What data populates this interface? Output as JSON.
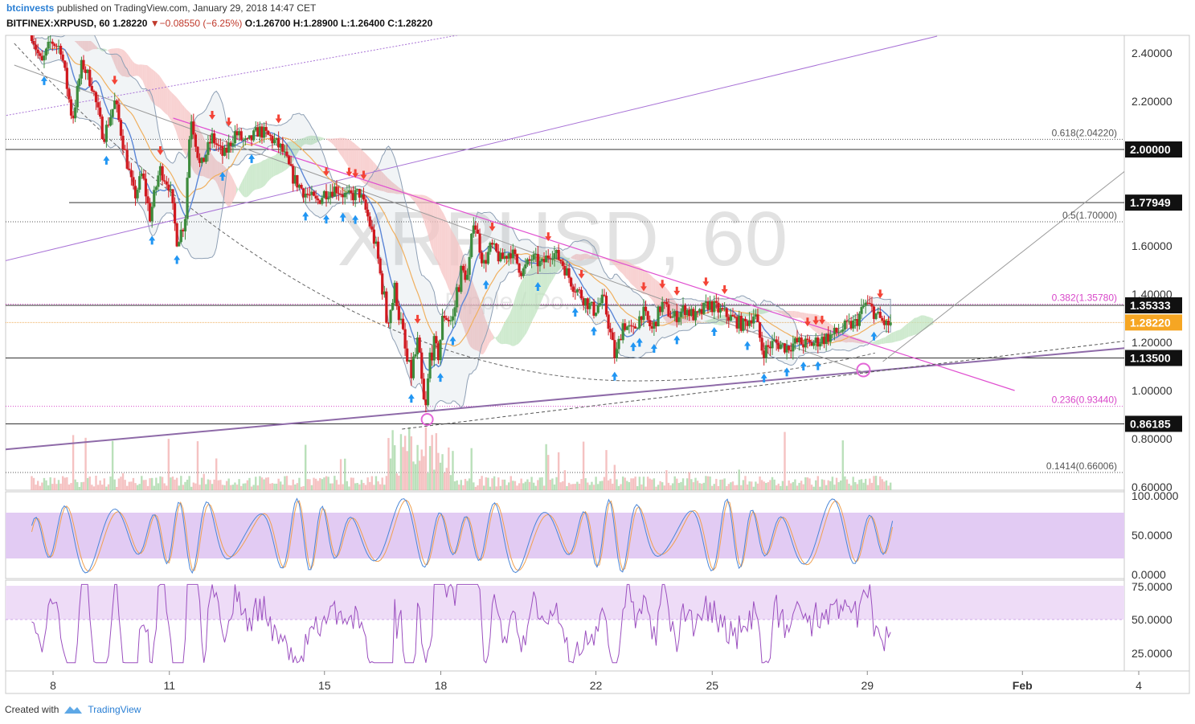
{
  "header": {
    "user": "btcinvests",
    "published": " published on TradingView.com, January 29, 2018 14:47 CET",
    "symbol": "BITFINEX:XRPUSD, 60",
    "last": "1.28220",
    "change": "−0.08550 (−6.25%)",
    "ohlc": "O:1.26700 H:1.28900 L:1.26400 C:1.28220"
  },
  "watermark": {
    "symbol": "XRPUSD, 60",
    "sub": "Ripple / Do..."
  },
  "colors": {
    "bull": "#3d8b3d",
    "bear": "#d0191f",
    "blue_line": "#5b86d6",
    "orange_line": "#f0b060",
    "fib": "#d847c9",
    "trend_pink": "#e04fd0",
    "purple_line": "#a872d6",
    "osc_band": "#e0c8f2",
    "buy_arrow": "#2196f3",
    "sell_arrow": "#f44336"
  },
  "price_axis": {
    "ticks": [
      "2.40000",
      "2.20000",
      "2.00000",
      "1.60000",
      "1.40000",
      "1.20000",
      "1.00000",
      "0.80000",
      "0.60000"
    ],
    "tick_values": [
      2.4,
      2.2,
      2.0,
      1.6,
      1.4,
      1.2,
      1.0,
      0.8,
      0.6
    ],
    "labels": [
      {
        "text": "2.00000",
        "value": 2.0,
        "style": "dark"
      },
      {
        "text": "1.77949",
        "value": 1.77949,
        "style": "dark"
      },
      {
        "text": "1.35333",
        "value": 1.35333,
        "style": "dark"
      },
      {
        "text": "1.28220",
        "value": 1.2822,
        "style": "orange"
      },
      {
        "text": "1.13500",
        "value": 1.135,
        "style": "dark"
      },
      {
        "text": "0.86185",
        "value": 0.86185,
        "style": "dark"
      }
    ]
  },
  "fib_labels": [
    {
      "text": "0.618(2.04220)",
      "value": 2.0422
    },
    {
      "text": "0.5(1.70000)",
      "value": 1.7
    },
    {
      "text": "0.382(1.35780)",
      "value": 1.3578
    },
    {
      "text": "0.236(0.93440)",
      "value": 0.9344
    },
    {
      "text": "0.1414(0.66006)",
      "value": 0.66006
    }
  ],
  "stoch_axis": [
    "100.0000",
    "50.0000",
    "0.0000"
  ],
  "rsi_axis": [
    "75.0000",
    "50.0000",
    "25.0000"
  ],
  "x_axis": [
    {
      "label": "8",
      "day": 8
    },
    {
      "label": "11",
      "day": 11
    },
    {
      "label": "15",
      "day": 15
    },
    {
      "label": "18",
      "day": 18
    },
    {
      "label": "22",
      "day": 22
    },
    {
      "label": "25",
      "day": 25
    },
    {
      "label": "29",
      "day": 29
    },
    {
      "label": "Feb",
      "day": 33
    },
    {
      "label": "4",
      "day": 36
    }
  ],
  "chart_data": {
    "type": "candlestick",
    "title": "BITFINEX:XRPUSD, 60",
    "x_unit": "day of month (Jan 2018)",
    "ylim": [
      0.58,
      2.47
    ],
    "path": [
      [
        7.45,
        2.48
      ],
      [
        7.7,
        2.35
      ],
      [
        7.95,
        2.45
      ],
      [
        8.2,
        2.42
      ],
      [
        8.5,
        2.12
      ],
      [
        8.75,
        2.36
      ],
      [
        9.0,
        2.27
      ],
      [
        9.3,
        2.05
      ],
      [
        9.6,
        2.2
      ],
      [
        9.85,
        1.99
      ],
      [
        10.1,
        1.8
      ],
      [
        10.3,
        1.9
      ],
      [
        10.5,
        1.72
      ],
      [
        10.75,
        1.92
      ],
      [
        11.0,
        1.85
      ],
      [
        11.2,
        1.62
      ],
      [
        11.4,
        1.7
      ],
      [
        11.55,
        2.15
      ],
      [
        11.8,
        1.92
      ],
      [
        12.1,
        2.05
      ],
      [
        12.4,
        1.97
      ],
      [
        12.7,
        2.07
      ],
      [
        13.0,
        2.02
      ],
      [
        13.3,
        2.08
      ],
      [
        13.6,
        2.05
      ],
      [
        13.9,
        2.0
      ],
      [
        14.2,
        1.88
      ],
      [
        14.5,
        1.82
      ],
      [
        14.8,
        1.78
      ],
      [
        15.0,
        1.82
      ],
      [
        15.3,
        1.84
      ],
      [
        15.6,
        1.8
      ],
      [
        15.9,
        1.82
      ],
      [
        16.1,
        1.73
      ],
      [
        16.35,
        1.58
      ],
      [
        16.6,
        1.3
      ],
      [
        16.85,
        1.42
      ],
      [
        17.0,
        1.23
      ],
      [
        17.2,
        1.05
      ],
      [
        17.4,
        1.18
      ],
      [
        17.6,
        0.88
      ],
      [
        17.75,
        1.2
      ],
      [
        17.9,
        1.13
      ],
      [
        18.1,
        1.33
      ],
      [
        18.3,
        1.28
      ],
      [
        18.5,
        1.5
      ],
      [
        18.7,
        1.47
      ],
      [
        18.85,
        1.72
      ],
      [
        19.1,
        1.52
      ],
      [
        19.3,
        1.6
      ],
      [
        19.55,
        1.54
      ],
      [
        19.8,
        1.58
      ],
      [
        20.1,
        1.49
      ],
      [
        20.35,
        1.55
      ],
      [
        20.6,
        1.52
      ],
      [
        20.85,
        1.58
      ],
      [
        21.1,
        1.54
      ],
      [
        21.4,
        1.44
      ],
      [
        21.7,
        1.38
      ],
      [
        21.95,
        1.33
      ],
      [
        22.2,
        1.38
      ],
      [
        22.5,
        1.13
      ],
      [
        22.7,
        1.28
      ],
      [
        22.95,
        1.24
      ],
      [
        23.2,
        1.33
      ],
      [
        23.45,
        1.25
      ],
      [
        23.7,
        1.36
      ],
      [
        24.0,
        1.3
      ],
      [
        24.3,
        1.34
      ],
      [
        24.6,
        1.3
      ],
      [
        24.9,
        1.36
      ],
      [
        25.2,
        1.33
      ],
      [
        25.5,
        1.3
      ],
      [
        25.8,
        1.27
      ],
      [
        26.1,
        1.32
      ],
      [
        26.3,
        1.16
      ],
      [
        26.6,
        1.2
      ],
      [
        26.9,
        1.18
      ],
      [
        27.2,
        1.2
      ],
      [
        27.5,
        1.19
      ],
      [
        27.8,
        1.21
      ],
      [
        28.1,
        1.23
      ],
      [
        28.4,
        1.26
      ],
      [
        28.7,
        1.28
      ],
      [
        28.95,
        1.36
      ],
      [
        29.1,
        1.34
      ],
      [
        29.3,
        1.3
      ],
      [
        29.5,
        1.27
      ],
      [
        29.65,
        1.282
      ]
    ]
  },
  "footer": {
    "created": "Created with",
    "brand": "TradingView"
  }
}
